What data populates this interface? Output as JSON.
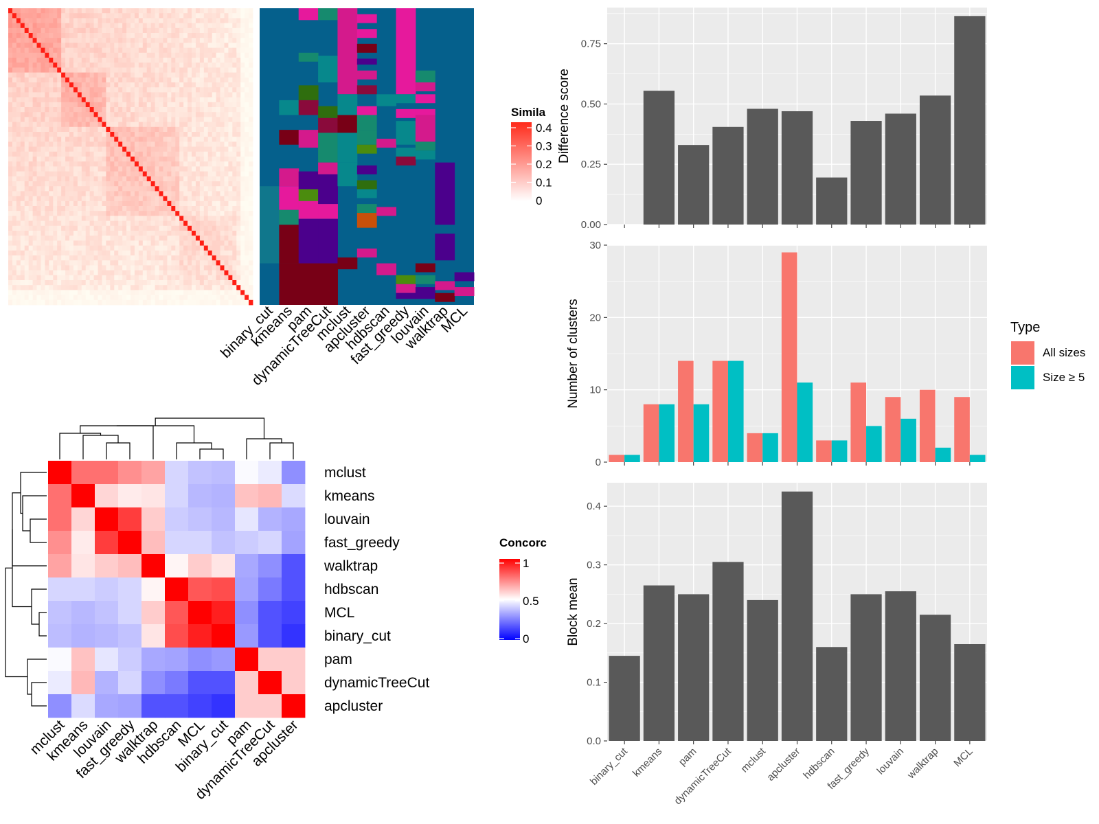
{
  "colors": {
    "panel_bg": "#EBEBEB",
    "grid": "#FFFFFF",
    "bar": "#595959",
    "all_sizes": "#F8766D",
    "size_ge5": "#00BFC4",
    "heat_high": "#FF0000",
    "heat_low": "#0000FF",
    "cluster_palette": [
      "#05608C",
      "#D41A8C",
      "#E6199C",
      "#168A6E",
      "#07888C",
      "#780016",
      "#4B8C0E",
      "#2F6E0E",
      "#8A0A3B",
      "#4B008C",
      "#C8500A",
      "#10778C"
    ]
  },
  "top_left": {
    "method_labels": [
      "binary_cut",
      "kmeans",
      "pam",
      "dynamicTreeCut",
      "mclust",
      "apcluster",
      "hdbscan",
      "fast_greedy",
      "louvain",
      "walktrap",
      "MCL"
    ],
    "legend_title": "Simila",
    "legend_ticks": [
      "0.4",
      "0.3",
      "0.2",
      "0.1",
      "0"
    ]
  },
  "bottom_left": {
    "row_labels": [
      "mclust",
      "kmeans",
      "louvain",
      "fast_greedy",
      "walktrap",
      "hdbscan",
      "MCL",
      "binary_cut",
      "pam",
      "dynamicTreeCut",
      "apcluster"
    ],
    "legend_title": "Concorc",
    "legend_ticks": [
      "1",
      "0.5",
      "0"
    ],
    "matrix": [
      [
        1.0,
        0.78,
        0.78,
        0.72,
        0.68,
        0.42,
        0.38,
        0.37,
        0.49,
        0.46,
        0.28
      ],
      [
        0.78,
        1.0,
        0.58,
        0.54,
        0.55,
        0.42,
        0.36,
        0.35,
        0.62,
        0.64,
        0.43
      ],
      [
        0.78,
        0.58,
        1.0,
        0.88,
        0.6,
        0.4,
        0.38,
        0.36,
        0.45,
        0.35,
        0.33
      ],
      [
        0.72,
        0.54,
        0.88,
        1.0,
        0.63,
        0.42,
        0.42,
        0.38,
        0.4,
        0.42,
        0.32
      ],
      [
        0.68,
        0.55,
        0.6,
        0.63,
        1.0,
        0.52,
        0.6,
        0.55,
        0.33,
        0.28,
        0.16
      ],
      [
        0.42,
        0.42,
        0.4,
        0.42,
        0.52,
        1.0,
        0.83,
        0.85,
        0.32,
        0.24,
        0.16
      ],
      [
        0.38,
        0.36,
        0.38,
        0.42,
        0.6,
        0.83,
        1.0,
        0.94,
        0.28,
        0.16,
        0.13
      ],
      [
        0.37,
        0.35,
        0.36,
        0.38,
        0.55,
        0.85,
        0.94,
        1.0,
        0.3,
        0.16,
        0.1
      ],
      [
        0.49,
        0.62,
        0.45,
        0.4,
        0.33,
        0.32,
        0.28,
        0.3,
        1.0,
        0.6,
        0.6
      ],
      [
        0.46,
        0.64,
        0.35,
        0.42,
        0.28,
        0.24,
        0.16,
        0.16,
        0.6,
        1.0,
        0.6
      ],
      [
        0.28,
        0.43,
        0.33,
        0.32,
        0.16,
        0.16,
        0.13,
        0.1,
        0.6,
        0.6,
        1.0
      ]
    ]
  },
  "right_panels": {
    "legend_title": "Type",
    "legend_items": [
      "All sizes",
      "Size ≥ 5"
    ]
  },
  "chart_data": [
    {
      "type": "heatmap",
      "description_of_content": "Term similarity matrix (left) with cluster assignment bars for each method (right)",
      "columns": [
        "binary_cut",
        "kmeans",
        "pam",
        "dynamicTreeCut",
        "mclust",
        "apcluster",
        "hdbscan",
        "fast_greedy",
        "louvain",
        "walktrap",
        "MCL"
      ],
      "legend_title": "Simila",
      "color_range": [
        0,
        0.4
      ]
    },
    {
      "type": "heatmap",
      "rows": [
        "mclust",
        "kmeans",
        "louvain",
        "fast_greedy",
        "walktrap",
        "hdbscan",
        "MCL",
        "binary_cut",
        "pam",
        "dynamicTreeCut",
        "apcluster"
      ],
      "columns": [
        "mclust",
        "kmeans",
        "louvain",
        "fast_greedy",
        "walktrap",
        "hdbscan",
        "MCL",
        "binary_cut",
        "pam",
        "dynamicTreeCut",
        "apcluster"
      ],
      "legend_title": "Concorc",
      "color_range": [
        0,
        1
      ]
    },
    {
      "type": "bar",
      "categories": [
        "binary_cut",
        "kmeans",
        "pam",
        "dynamicTreeCut",
        "mclust",
        "apcluster",
        "hdbscan",
        "fast_greedy",
        "louvain",
        "walktrap",
        "MCL"
      ],
      "values": [
        0.0,
        0.555,
        0.33,
        0.405,
        0.48,
        0.47,
        0.195,
        0.43,
        0.46,
        0.535,
        0.865
      ],
      "ylabel": "Difference score",
      "ylim": [
        0,
        0.9
      ],
      "yticks": [
        "0.00",
        "0.25",
        "0.50",
        "0.75"
      ]
    },
    {
      "type": "bar",
      "categories": [
        "binary_cut",
        "kmeans",
        "pam",
        "dynamicTreeCut",
        "mclust",
        "apcluster",
        "hdbscan",
        "fast_greedy",
        "louvain",
        "walktrap",
        "MCL"
      ],
      "series": [
        {
          "name": "All sizes",
          "values": [
            1,
            8,
            14,
            14,
            4,
            29,
            3,
            11,
            9,
            10,
            9
          ]
        },
        {
          "name": "Size ≥ 5",
          "values": [
            1,
            8,
            8,
            14,
            4,
            11,
            3,
            5,
            6,
            2,
            1
          ]
        }
      ],
      "ylabel": "Number of clusters",
      "ylim": [
        0,
        30
      ],
      "yticks": [
        "0",
        "10",
        "20",
        "30"
      ],
      "legend_title": "Type"
    },
    {
      "type": "bar",
      "categories": [
        "binary_cut",
        "kmeans",
        "pam",
        "dynamicTreeCut",
        "mclust",
        "apcluster",
        "hdbscan",
        "fast_greedy",
        "louvain",
        "walktrap",
        "MCL"
      ],
      "values": [
        0.145,
        0.265,
        0.25,
        0.305,
        0.24,
        0.425,
        0.16,
        0.25,
        0.255,
        0.215,
        0.165
      ],
      "ylabel": "Block mean",
      "ylim": [
        0,
        0.44
      ],
      "yticks": [
        "0.0",
        "0.1",
        "0.2",
        "0.3",
        "0.4"
      ]
    }
  ]
}
